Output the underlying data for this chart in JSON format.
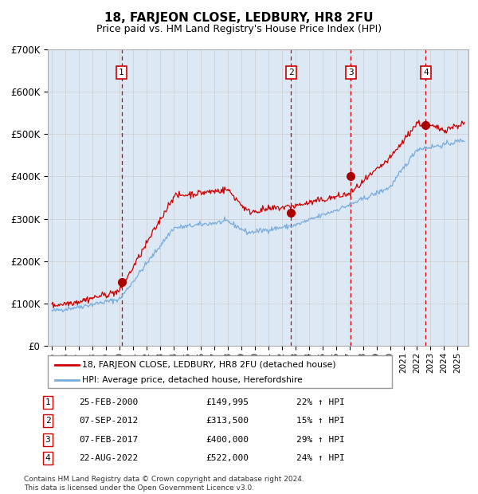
{
  "title": "18, FARJEON CLOSE, LEDBURY, HR8 2FU",
  "subtitle": "Price paid vs. HM Land Registry's House Price Index (HPI)",
  "background_color": "#dce9f5",
  "plot_bg_color": "#dce9f5",
  "hpi_line_color": "#7aacdc",
  "price_line_color": "#cc0000",
  "marker_color": "#aa0000",
  "vline_color_sale": "#cc0000",
  "ylim": [
    0,
    700000
  ],
  "yticks": [
    0,
    100000,
    200000,
    300000,
    400000,
    500000,
    600000,
    700000
  ],
  "ytick_labels": [
    "£0",
    "£100K",
    "£200K",
    "£300K",
    "£400K",
    "£500K",
    "£600K",
    "£700K"
  ],
  "xlim_start": 1994.7,
  "xlim_end": 2025.8,
  "sale_dates": [
    2000.15,
    2012.68,
    2017.1,
    2022.64
  ],
  "sale_prices": [
    149995,
    313500,
    400000,
    522000
  ],
  "sale_labels": [
    "1",
    "2",
    "3",
    "4"
  ],
  "sale_annotations": [
    {
      "label": "1",
      "date": "25-FEB-2000",
      "price": "£149,995",
      "pct": "22% ↑ HPI"
    },
    {
      "label": "2",
      "date": "07-SEP-2012",
      "price": "£313,500",
      "pct": "15% ↑ HPI"
    },
    {
      "label": "3",
      "date": "07-FEB-2017",
      "price": "£400,000",
      "pct": "29% ↑ HPI"
    },
    {
      "label": "4",
      "date": "22-AUG-2022",
      "price": "£522,000",
      "pct": "24% ↑ HPI"
    }
  ],
  "legend_line1": "18, FARJEON CLOSE, LEDBURY, HR8 2FU (detached house)",
  "legend_line2": "HPI: Average price, detached house, Herefordshire",
  "footnote": "Contains HM Land Registry data © Crown copyright and database right 2024.\nThis data is licensed under the Open Government Licence v3.0."
}
